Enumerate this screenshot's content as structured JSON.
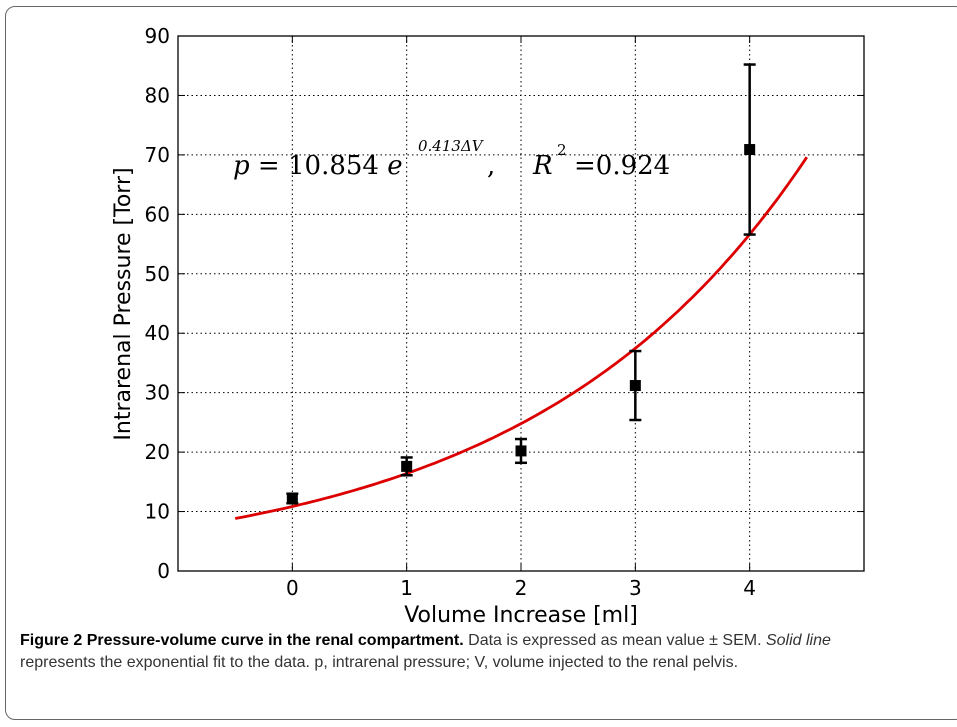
{
  "chart_data": {
    "type": "scatter",
    "xlabel": "Volume Increase [ml]",
    "ylabel": "Intrarenal Pressure [Torr]",
    "xlim": [
      -1,
      5
    ],
    "ylim": [
      0,
      90
    ],
    "x_ticks": [
      "0",
      "1",
      "2",
      "3",
      "4"
    ],
    "y_ticks": [
      "0",
      "10",
      "20",
      "30",
      "40",
      "50",
      "60",
      "70",
      "80",
      "90"
    ],
    "grid": true,
    "series": [
      {
        "kind": "points_with_error_bars",
        "color": "#000000",
        "points": [
          {
            "x": 0,
            "y": 12.2,
            "err": 0.8
          },
          {
            "x": 1,
            "y": 17.6,
            "err": 1.5
          },
          {
            "x": 2,
            "y": 20.2,
            "err": 2.0
          },
          {
            "x": 3,
            "y": 31.2,
            "err": 5.8
          },
          {
            "x": 4,
            "y": 70.9,
            "err": 14.3
          }
        ]
      },
      {
        "kind": "exponential_fit",
        "color": "#dd0000",
        "a": 10.854,
        "b": 0.413,
        "x_range": [
          -0.5,
          4.5
        ]
      }
    ],
    "annotation": {
      "lhs": "p",
      "eq": "=",
      "coef": "10.854",
      "base": "e",
      "exponent": "0.413ΔV",
      "comma": ",",
      "r_label": "R",
      "r_sup": "2",
      "r_value": "=0.924"
    }
  },
  "caption": {
    "label": "Figure 2",
    "title": "Pressure-volume curve in the renal compartment.",
    "text1": "Data is expressed as mean value ± SEM.",
    "italic": "Solid line",
    "text2": "represents the exponential fit to the data. p, intrarenal pressure; V, volume injected to the renal pelvis."
  }
}
